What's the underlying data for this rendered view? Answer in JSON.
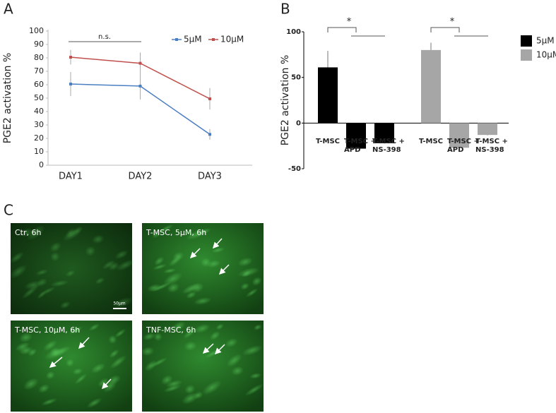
{
  "panels": [
    "A",
    "B",
    "C"
  ],
  "chart_data": [
    {
      "type": "line",
      "ylabel": "PGE2 activation %",
      "categories": [
        "DAY1",
        "DAY2",
        "DAY3"
      ],
      "series": [
        {
          "name": "5µM",
          "color": "#4a7fc1",
          "values": [
            60.5,
            59,
            23
          ],
          "errors": [
            9,
            10,
            4
          ]
        },
        {
          "name": "10µM",
          "color": "#c0504d",
          "values": [
            80.5,
            76,
            49.5
          ],
          "errors": [
            5.5,
            8,
            8
          ]
        }
      ],
      "ylim": [
        0,
        100
      ],
      "yticks": [
        0,
        10,
        20,
        30,
        40,
        50,
        60,
        70,
        80,
        90,
        100
      ],
      "annotations": [
        "n.s."
      ]
    },
    {
      "type": "bar",
      "ylabel": "PGE2 activation %",
      "categories": [
        "T-MSC",
        "T-MSC + APD",
        "T-MSC + NS-398"
      ],
      "series": [
        {
          "name": "5µM",
          "color": "#000000",
          "values": [
            61,
            -28,
            -22
          ],
          "errors": [
            18,
            0.5,
            0.5
          ]
        },
        {
          "name": "10µM",
          "color": "#a6a6a6",
          "values": [
            80,
            -27,
            -13
          ],
          "errors": [
            8,
            1,
            0.5
          ]
        }
      ],
      "ylim": [
        -50,
        100
      ],
      "yticks": [
        -50,
        0,
        50,
        100
      ],
      "annotations": [
        "*",
        "*"
      ]
    }
  ],
  "micrographs": {
    "labels": [
      "Ctr, 6h",
      "T-MSC, 5µM, 6h",
      "T-MSC, 10µM, 6h",
      "TNF-MSC, 6h"
    ],
    "scale_bar": "50µm"
  }
}
